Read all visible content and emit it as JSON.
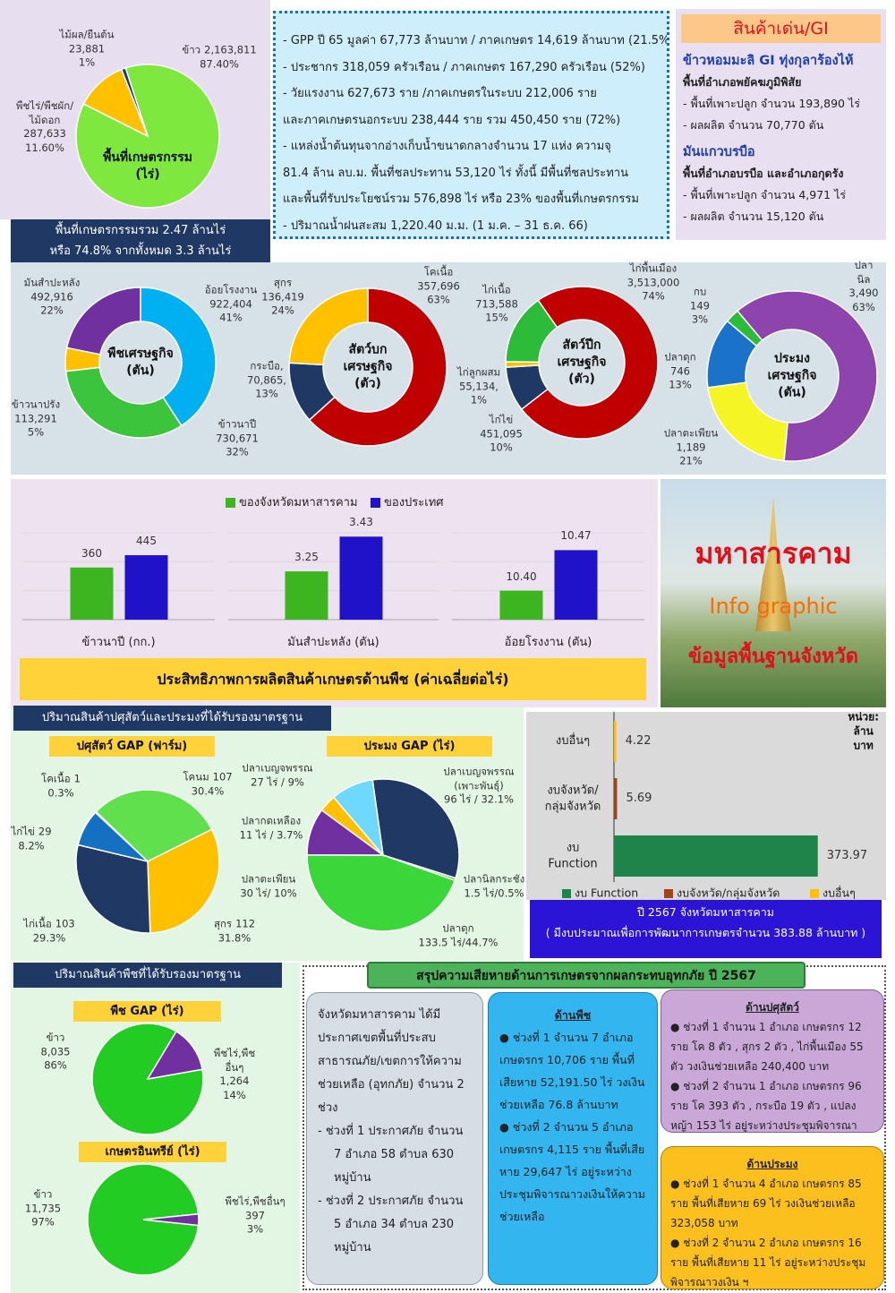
{
  "chart_data": [
    {
      "type": "pie",
      "title": "พื้นที่เกษตรกรรม\n(ไร่)",
      "categories": [
        "ข้าว",
        "พืชไร่/พืชผัก/\nไม้ดอก",
        "ไม้ผล/ยืนต้น"
      ],
      "values": [
        2163811,
        287633,
        23881
      ],
      "value_labels": [
        "2,163,811",
        "287,633",
        "23,881"
      ],
      "percents": [
        87.4,
        11.6,
        1
      ],
      "percent_labels": [
        "87.40%",
        "11.60%",
        "1%"
      ],
      "colors": [
        "#7ee83f",
        "#ffc000",
        "#203864"
      ]
    },
    {
      "type": "donut",
      "title": "พืชเศรษฐกิจ\n(ตัน)",
      "categories": [
        "อ้อยโรงงาน",
        "ข้าวนาปี",
        "ข้าวนาปรัง",
        "มันสำปะหลัง"
      ],
      "values": [
        922404,
        730671,
        113291,
        492916
      ],
      "value_labels": [
        "922,404",
        "730,671",
        "113,291",
        "492,916"
      ],
      "percents": [
        41,
        32,
        5,
        22
      ],
      "percent_labels": [
        "41%",
        "32%",
        "5%",
        "22%"
      ],
      "colors": [
        "#00b0f0",
        "#3cc43c",
        "#ffc000",
        "#7030a0"
      ]
    },
    {
      "type": "donut",
      "title": "สัตว์บก\nเศรษฐกิจ\n(ตัว)",
      "categories": [
        "โคเนื้อ",
        "กระบือ,",
        "สุกร"
      ],
      "values": [
        357696,
        70865,
        136419
      ],
      "value_labels": [
        "357,696",
        "70,865,",
        "136,419"
      ],
      "percents": [
        63,
        13,
        24
      ],
      "percent_labels": [
        "63%",
        "13%",
        "24%"
      ],
      "colors": [
        "#c00000",
        "#203864",
        "#ffc000"
      ]
    },
    {
      "type": "donut",
      "title": "สัตว์ปีก\nเศรษฐกิจ\n(ตัว)",
      "categories": [
        "ไก่พื้นเมือง",
        "ไก่ไข่",
        "ไก่ลูกผสม",
        "ไก่เนื้อ"
      ],
      "values": [
        3513000,
        451095,
        55134,
        713588
      ],
      "value_labels": [
        "3,513,000",
        "451,095",
        "55,134,",
        "713,588"
      ],
      "percents": [
        74,
        10,
        1,
        15
      ],
      "percent_labels": [
        "74%",
        "10%",
        "1%",
        "15%"
      ],
      "colors": [
        "#c00000",
        "#203864",
        "#ffc000",
        "#2dbb3a"
      ]
    },
    {
      "type": "donut",
      "title": "ประมง\nเศรษฐกิจ\n(ตัน)",
      "categories": [
        "ปลานิล",
        "ปลาตะเพียน",
        "ปลาดุก",
        "กบ"
      ],
      "values": [
        3490,
        1189,
        746,
        149
      ],
      "value_labels": [
        "3,490",
        "1,189",
        "746",
        "149"
      ],
      "percents": [
        63,
        21,
        13,
        3
      ],
      "percent_labels": [
        "63%",
        "21%",
        "13%",
        "3%"
      ],
      "colors": [
        "#8e44ad",
        "#f5f526",
        "#1a73c8",
        "#2dbb3a"
      ]
    },
    {
      "type": "bar",
      "title": "ประสิทธิภาพการผลิตสินค้าเกษตรด้านพืช (ค่าเฉลี่ยต่อไร่)",
      "categories": [
        "ข้าวนาปี (กก.)",
        "มันสำปะหลัง (ตัน)",
        "อ้อยโรงงาน (ตัน)"
      ],
      "series": [
        {
          "name": "ของจังหวัดมหาสารคาม",
          "color": "#3cb521",
          "values": [
            360,
            3.25,
            10.4
          ],
          "value_labels": [
            "360",
            "3.25",
            "10.40"
          ]
        },
        {
          "name": "ของประเทศ",
          "color": "#2012c8",
          "values": [
            445,
            3.43,
            10.47
          ],
          "value_labels": [
            "445",
            "3.43",
            "10.47"
          ]
        }
      ],
      "ylims": [
        [
          0,
          600
        ],
        [
          3,
          3.45
        ],
        [
          10.35,
          10.5
        ]
      ],
      "yticks": [
        [
          0,
          200,
          400,
          600
        ],
        [
          3,
          3.15,
          3.3,
          3.45
        ],
        [
          10.35,
          10.4,
          10.45,
          10.5
        ]
      ],
      "grid": true
    },
    {
      "type": "pie",
      "title": "ปศุสัตว์ GAP (ฟาร์ม)",
      "categories": [
        "โคเนื้อ",
        "โคนม",
        "สุกร",
        "ไก่เนื้อ",
        "ไก่ไข่"
      ],
      "values": [
        1,
        107,
        112,
        103,
        29
      ],
      "percents": [
        0.3,
        30.4,
        31.8,
        29.3,
        8.2
      ],
      "percent_labels": [
        "0.3%",
        "30.4%",
        "31.8%",
        "29.3%",
        "8.2%"
      ],
      "colors": [
        "#4472c4",
        "#5fe04c",
        "#ffc000",
        "#1f3864",
        "#1470c0"
      ]
    },
    {
      "type": "pie",
      "title": "ประมง GAP (ไร่)",
      "categories": [
        "ปลาเบญจพรรณ\n(เพาะพันธุ์)",
        "ปลานิลกระชัง",
        "ปลาดุก",
        "ปลาตะเพียน",
        "ปลากดเหลือง",
        "ปลาเบญจพรรณ"
      ],
      "values": [
        96,
        1.5,
        133.5,
        30,
        11,
        27
      ],
      "value_labels": [
        "96 ไร่ / 32.1%",
        "1.5 ไร่/0.5%",
        "133.5 ไร่/44.7%",
        "30 ไร่/ 10%",
        "11 ไร่ / 3.7%",
        "27 ไร่ / 9%"
      ],
      "percents": [
        32.1,
        0.5,
        44.7,
        10,
        3.7,
        9
      ],
      "colors": [
        "#1f3864",
        "#70ad47",
        "#3ad63a",
        "#7030a0",
        "#ffc000",
        "#6ed8ff"
      ]
    },
    {
      "type": "hbar",
      "categories": [
        "งบอื่นๆ",
        "งบจังหวัด/\nกลุ่มจังหวัด",
        "งบ\nFunction"
      ],
      "values": [
        4.22,
        5.69,
        373.97
      ],
      "colors": [
        "#ffc000",
        "#a0461a",
        "#1e8449"
      ],
      "legend": [
        "งบ Function",
        "งบจังหวัด/กลุ่มจังหวัด",
        "งบอื่นๆ"
      ],
      "xlim": [
        0,
        450
      ],
      "unit": "หน่วย: ล้านบาท",
      "caption": [
        "ปี 2567 จังหวัดมหาสารคาม",
        "( มีงบประมาณเพื่อการพัฒนาการเกษตรจำนวน 383.88 ล้านบาท )"
      ]
    },
    {
      "type": "pie",
      "title": "พืช GAP (ไร่)",
      "categories": [
        "ข้าว",
        "พืชไร่,พืช\nอื่นๆ"
      ],
      "values": [
        8035,
        1264
      ],
      "value_labels": [
        "8,035",
        "1,264"
      ],
      "percents": [
        86,
        14
      ],
      "percent_labels": [
        "86%",
        "14%"
      ],
      "colors": [
        "#22cc22",
        "#7030a0"
      ]
    },
    {
      "type": "pie",
      "title": "เกษตรอินทรีย์ (ไร่)",
      "categories": [
        "ข้าว",
        "พืชไร่,พืชอื่นๆ"
      ],
      "values": [
        11735,
        397
      ],
      "value_labels": [
        "11,735",
        "397"
      ],
      "percents": [
        97,
        3
      ],
      "percent_labels": [
        "97%",
        "3%"
      ],
      "colors": [
        "#22cc22",
        "#7030a0"
      ]
    }
  ],
  "header_box": {
    "lines": [
      "- GPP ปี 65 มูลค่า 67,773  ล้านบาท / ภาคเกษตร 14,619 ล้านบาท (21.5%)",
      "- ประชากร 318,059 ครัวเรือน / ภาคเกษตร 167,290 ครัวเรือน (52%)",
      "- วัยแรงงาน 627,673 ราย /ภาคเกษตรในระบบ 212,006 ราย",
      "และภาคเกษตรนอกระบบ 238,444 ราย รวม 450,450 ราย (72%)",
      "- แหล่งน้ำต้นทุนจากอ่างเก็บน้ำขนาดกลางจำนวน 17 แห่ง ความจุ",
      "81.4 ล้าน ลบ.ม. พื้นที่ชลประทาน 53,120 ไร่ ทั้งนี้ มีพื้นที่ชลประทาน",
      "และพื้นที่รับประโยชน์รวม 576,898 ไร่ หรือ 23% ของพื้นที่เกษตรกรรม",
      "- ปริมาณน้ำฝนสะสม 1,220.40 ม.ม. (1 ม.ค. – 31 ธ.ค. 66)"
    ]
  },
  "gi": {
    "title": "สินค้าเด่น/GI",
    "items": [
      {
        "name": "ข้าวหอมมะลิ GI ทุ่งกุลาร้องไห้",
        "area": "พื้นที่อำเภอพยัคฆภูมิพิสัย",
        "lines": [
          "- พื้นที่เพาะปลูก จำนวน 193,890 ไร่",
          "- ผลผลิต จำนวน 70,770 ตัน"
        ]
      },
      {
        "name": "มันแกวบรบือ",
        "area": "พื้นที่อำเภอบรบือ และอำเภอกุดรัง",
        "lines": [
          "- พื้นที่เพาะปลูก จำนวน 4,971 ไร่",
          "- ผลผลิต จำนวน 15,120 ตัน"
        ]
      }
    ]
  },
  "land_banner": {
    "lines": [
      "พื้นที่เกษตรกรรมรวม 2.47 ล้านไร่",
      "หรือ 74.8% จากทั้งหมด 3.3 ล้านไร่"
    ]
  },
  "photo": {
    "title": "มหาสารคาม",
    "subtitle": "Info graphic",
    "caption": "ข้อมูลพื้นฐานจังหวัด"
  },
  "livestock_section_title": "ปริมาณสินค้าปศุสัตว์และประมงที่ได้รับรองมาตรฐาน",
  "crop_section_title": "ปริมาณสินค้าพืชที่ได้รับรองมาตรฐาน",
  "flood": {
    "title": "สรุปความเสียหายด้านการเกษตรจากผลกระทบอุทกภัย ปี 2567",
    "intro": "จังหวัดมหาสารคาม ได้มีประกาศเขตพื้นที่ประสบสาธารณภัย/เขตการให้ความช่วยเหลือ (อุทกภัย) จำนวน 2 ช่วง",
    "periods": [
      "-  ช่วงที่ 1 ประกาศภัย จำนวน 7 อำเภอ 58 ตำบล 630 หมู่บ้าน",
      "-  ช่วงที่ 2 ประกาศภัย จำนวน 5 อำเภอ 34 ตำบล 230 หมู่บ้าน"
    ],
    "crops": {
      "title": "ด้านพืช",
      "items": [
        "● ช่วงที่ 1 จำนวน 7 อำเภอ เกษตรกร 10,706 ราย พื้นที่เสียหาย 52,191.50 ไร่ วงเงินช่วยเหลือ 76.8 ล้านบาท",
        "● ช่วงที่ 2 จำนวน 5 อำเภอ เกษตรกร 4,115 ราย พื้นที่เสียหาย 29,647 ไร่ อยู่ระหว่างประชุมพิจารณาวงเงินให้ความช่วยเหลือ"
      ]
    },
    "livestock": {
      "title": "ด้านปศุสัตว์",
      "items": [
        "● ช่วงที่ 1 จำนวน 1 อำเภอ เกษตรกร 12 ราย โค 8 ตัว , สุกร 2 ตัว , ไก่พื้นเมือง 55 ตัว วงเงินช่วยเหลือ 240,400 บาท",
        "● ช่วงที่ 2 จำนวน 1 อำเภอ เกษตรกร 96 ราย โค 393 ตัว , กระบือ 19 ตัว , แปลงหญ้า 153 ไร่ อยู่ระหว่างประชุมพิจารณาวงเงิน ฯ"
      ]
    },
    "fishery": {
      "title": "ด้านประมง",
      "items": [
        "● ช่วงที่ 1 จำนวน 4 อำเภอ เกษตรกร 85 ราย พื้นที่เสียหาย 69 ไร่ วงเงินช่วยเหลือ 323,058 บาท",
        "● ช่วงที่ 2 จำนวน 2 อำเภอ เกษตรกร 16 ราย พื้นที่เสียหาย 11 ไร่ อยู่ระหว่างประชุมพิจารณาวงเงิน ฯ"
      ]
    }
  }
}
